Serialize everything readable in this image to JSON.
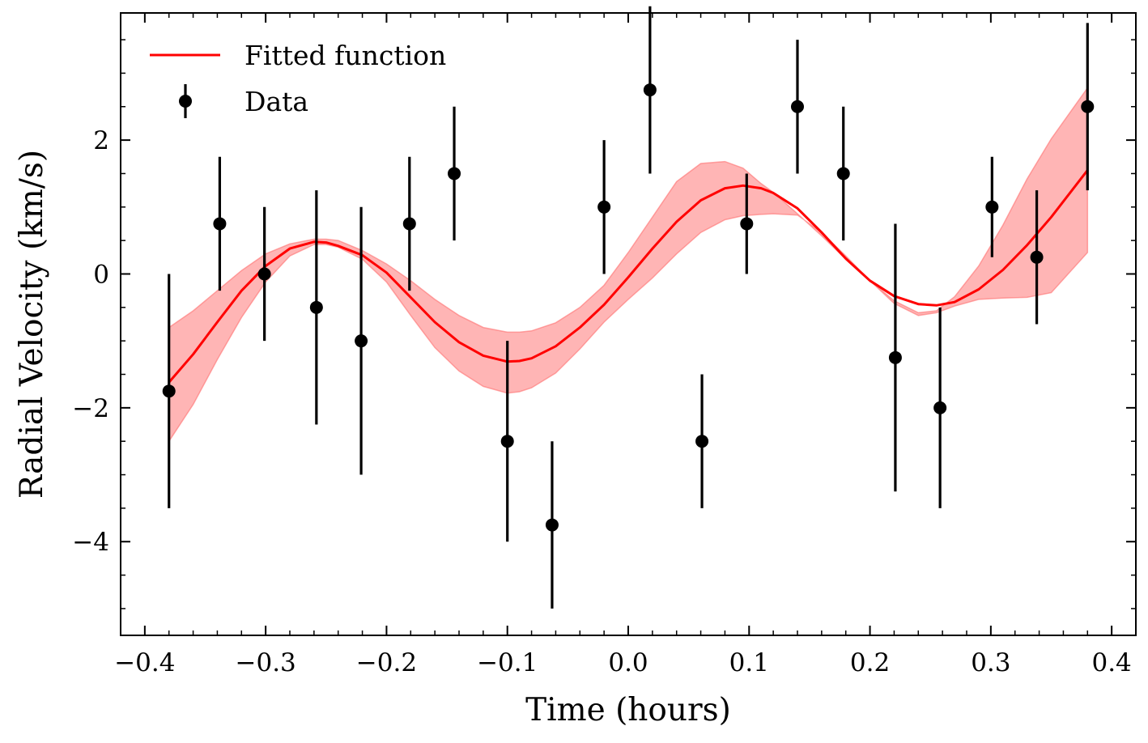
{
  "chart_data": {
    "type": "scatter",
    "title": "",
    "xlabel": "Time (hours)",
    "ylabel": "Radial Velocity (km/s)",
    "xlim": [
      -0.42,
      0.42
    ],
    "ylim": [
      -5.4,
      3.9
    ],
    "x_ticks": [
      -0.4,
      -0.3,
      -0.2,
      -0.1,
      0.0,
      0.1,
      0.2,
      0.3,
      0.4
    ],
    "x_tick_labels": [
      "−0.4",
      "−0.3",
      "−0.2",
      "−0.1",
      "0.0",
      "0.1",
      "0.2",
      "0.3",
      "0.4"
    ],
    "y_ticks": [
      -4,
      -2,
      0,
      2
    ],
    "y_tick_labels": [
      "−4",
      "−2",
      "0",
      "2"
    ],
    "grid": false,
    "legend_position": "top-left",
    "colors": {
      "fit": "#ff0000",
      "band": "#ff9999",
      "data": "#000000"
    },
    "series": [
      {
        "name": "Fitted function",
        "kind": "line",
        "x": [
          -0.38,
          -0.36,
          -0.34,
          -0.32,
          -0.3,
          -0.28,
          -0.26,
          -0.25,
          -0.24,
          -0.22,
          -0.2,
          -0.18,
          -0.16,
          -0.14,
          -0.12,
          -0.1,
          -0.09,
          -0.08,
          -0.06,
          -0.04,
          -0.02,
          0.0,
          0.02,
          0.04,
          0.06,
          0.08,
          0.095,
          0.11,
          0.12,
          0.14,
          0.16,
          0.18,
          0.2,
          0.22,
          0.24,
          0.255,
          0.27,
          0.29,
          0.31,
          0.33,
          0.35,
          0.38
        ],
        "y": [
          -1.62,
          -1.2,
          -0.72,
          -0.25,
          0.12,
          0.38,
          0.48,
          0.47,
          0.42,
          0.28,
          0.02,
          -0.35,
          -0.72,
          -1.02,
          -1.22,
          -1.31,
          -1.3,
          -1.26,
          -1.08,
          -0.8,
          -0.46,
          -0.05,
          0.38,
          0.78,
          1.1,
          1.28,
          1.32,
          1.28,
          1.21,
          0.98,
          0.62,
          0.23,
          -0.1,
          -0.33,
          -0.45,
          -0.47,
          -0.42,
          -0.23,
          0.06,
          0.43,
          0.85,
          1.55
        ],
        "band_upper": [
          -0.8,
          -0.55,
          -0.25,
          0.05,
          0.3,
          0.45,
          0.52,
          0.52,
          0.5,
          0.35,
          0.15,
          -0.1,
          -0.38,
          -0.62,
          -0.8,
          -0.87,
          -0.87,
          -0.85,
          -0.73,
          -0.5,
          -0.17,
          0.32,
          0.85,
          1.38,
          1.65,
          1.68,
          1.58,
          1.35,
          1.22,
          0.9,
          0.57,
          0.22,
          -0.1,
          -0.4,
          -0.58,
          -0.55,
          -0.34,
          0.12,
          0.73,
          1.42,
          2.02,
          2.78
        ],
        "band_lower": [
          -2.5,
          -1.95,
          -1.28,
          -0.65,
          -0.12,
          0.27,
          0.44,
          0.44,
          0.4,
          0.22,
          -0.12,
          -0.62,
          -1.1,
          -1.45,
          -1.68,
          -1.78,
          -1.76,
          -1.7,
          -1.48,
          -1.12,
          -0.72,
          -0.38,
          -0.06,
          0.3,
          0.62,
          0.81,
          0.87,
          0.89,
          0.9,
          0.88,
          0.62,
          0.27,
          -0.1,
          -0.44,
          -0.62,
          -0.58,
          -0.48,
          -0.38,
          -0.36,
          -0.35,
          -0.28,
          0.32
        ]
      },
      {
        "name": "Data",
        "kind": "errorbar",
        "x": [
          -0.38,
          -0.338,
          -0.301,
          -0.258,
          -0.221,
          -0.181,
          -0.144,
          -0.1,
          -0.063,
          -0.02,
          0.018,
          0.061,
          0.098,
          0.14,
          0.178,
          0.221,
          0.258,
          0.301,
          0.338,
          0.38
        ],
        "y": [
          -1.75,
          0.75,
          0.0,
          -0.5,
          -1.0,
          0.75,
          1.5,
          -2.5,
          -3.75,
          1.0,
          2.75,
          -2.5,
          0.75,
          2.5,
          1.5,
          -1.25,
          -2.0,
          1.0,
          0.25,
          2.5
        ],
        "yerr": [
          1.75,
          1.0,
          1.0,
          1.75,
          2.0,
          1.0,
          1.0,
          1.5,
          1.25,
          1.0,
          1.25,
          1.0,
          0.75,
          1.0,
          1.0,
          2.0,
          1.5,
          0.75,
          1.0,
          1.25
        ]
      }
    ]
  }
}
